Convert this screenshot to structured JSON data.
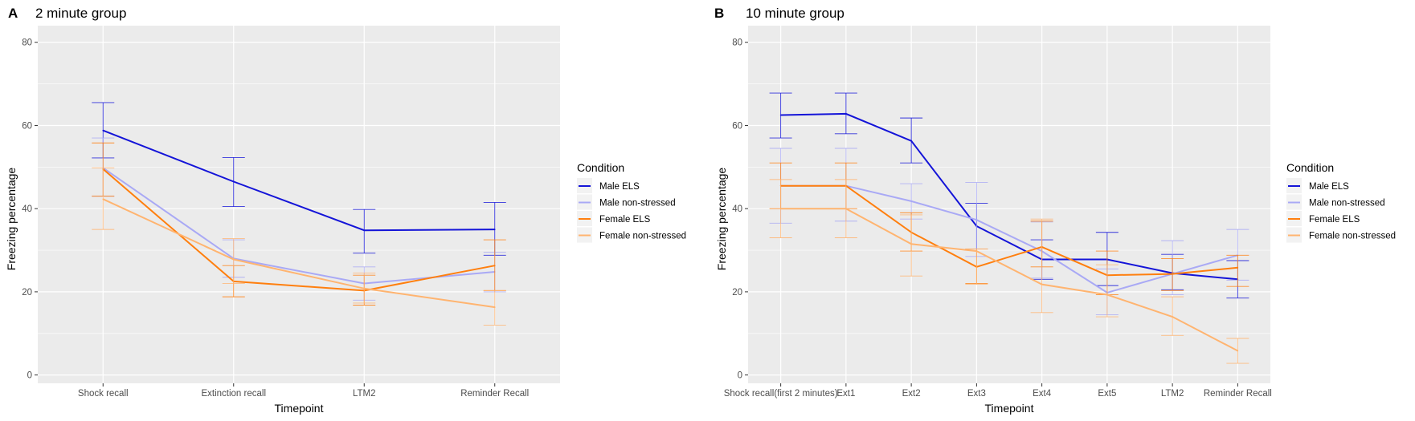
{
  "colors": {
    "panel_bg": "#EBEBEB",
    "grid": "#FFFFFF",
    "Male ELS": "#1414D8",
    "Male non-stressed": "#A9A9F5",
    "Female ELS": "#FF7F0E",
    "Female non-stressed": "#FFB470"
  },
  "chart_data": [
    {
      "panel_letter": "A",
      "type": "line",
      "title": "2 minute group",
      "xlabel": "Timepoint",
      "ylabel": "Freezing percentage",
      "ylim": [
        -2,
        84
      ],
      "yticks": [
        0,
        20,
        40,
        60,
        80
      ],
      "grid": true,
      "categories": [
        "Shock recall",
        "Extinction recall",
        "LTM2",
        "Reminder Recall"
      ],
      "legend": {
        "title": "Condition",
        "position": "right"
      },
      "series": [
        {
          "name": "Male ELS",
          "values": [
            58.8,
            46.5,
            34.8,
            35.0
          ],
          "err_low": [
            52.2,
            40.5,
            29.3,
            28.8
          ],
          "err_high": [
            65.5,
            52.3,
            39.8,
            41.5
          ]
        },
        {
          "name": "Male non-stressed",
          "values": [
            49.8,
            28.0,
            22.0,
            24.8
          ],
          "err_low": [
            43.0,
            23.5,
            18.0,
            20.0
          ],
          "err_high": [
            57.0,
            32.5,
            26.0,
            29.5
          ]
        },
        {
          "name": "Female ELS",
          "values": [
            49.5,
            22.5,
            20.3,
            26.3
          ],
          "err_low": [
            43.0,
            18.8,
            16.8,
            20.3
          ],
          "err_high": [
            55.8,
            26.3,
            24.0,
            32.5
          ]
        },
        {
          "name": "Female non-stressed",
          "values": [
            42.3,
            27.8,
            20.8,
            16.3
          ],
          "err_low": [
            35.0,
            22.0,
            17.3,
            12.0
          ],
          "err_high": [
            49.8,
            32.8,
            24.5,
            20.3
          ]
        }
      ]
    },
    {
      "panel_letter": "B",
      "type": "line",
      "title": "10 minute group",
      "xlabel": "Timepoint",
      "ylabel": "Freezing percentage",
      "ylim": [
        -2,
        84
      ],
      "yticks": [
        0,
        20,
        40,
        60,
        80
      ],
      "grid": true,
      "categories": [
        "Shock recall(first 2 minutes)",
        "Ext1",
        "Ext2",
        "Ext3",
        "Ext4",
        "Ext5",
        "LTM2",
        "Reminder Recall"
      ],
      "legend": {
        "title": "Condition",
        "position": "right"
      },
      "series": [
        {
          "name": "Male ELS",
          "values": [
            62.5,
            62.8,
            56.3,
            35.8,
            27.8,
            27.8,
            24.5,
            23.0
          ],
          "err_low": [
            57.0,
            58.0,
            51.0,
            30.3,
            23.0,
            21.5,
            20.5,
            18.5
          ],
          "err_high": [
            67.8,
            67.8,
            61.8,
            41.3,
            32.5,
            34.3,
            29.0,
            27.5
          ]
        },
        {
          "name": "Male non-stressed",
          "values": [
            45.5,
            45.5,
            41.8,
            37.3,
            29.8,
            19.8,
            24.3,
            28.8
          ],
          "err_low": [
            36.5,
            37.0,
            37.5,
            28.5,
            23.3,
            14.5,
            19.3,
            22.8
          ],
          "err_high": [
            54.5,
            54.5,
            46.0,
            46.3,
            36.8,
            25.5,
            32.3,
            35.0
          ]
        },
        {
          "name": "Female ELS",
          "values": [
            45.5,
            45.5,
            34.3,
            26.0,
            30.8,
            24.0,
            24.3,
            25.8
          ],
          "err_low": [
            40.0,
            40.0,
            29.8,
            22.0,
            26.0,
            19.3,
            20.3,
            21.3
          ],
          "err_high": [
            51.0,
            51.0,
            39.0,
            30.3,
            37.0,
            29.8,
            28.0,
            28.8
          ]
        },
        {
          "name": "Female non-stressed",
          "values": [
            40.0,
            40.0,
            31.5,
            29.8,
            21.8,
            19.3,
            14.0,
            5.8
          ],
          "err_low": [
            33.0,
            33.0,
            23.8,
            21.8,
            15.0,
            14.0,
            9.5,
            2.8
          ],
          "err_high": [
            47.0,
            47.0,
            38.5,
            30.3,
            37.5,
            26.5,
            18.8,
            8.8
          ]
        }
      ]
    }
  ]
}
